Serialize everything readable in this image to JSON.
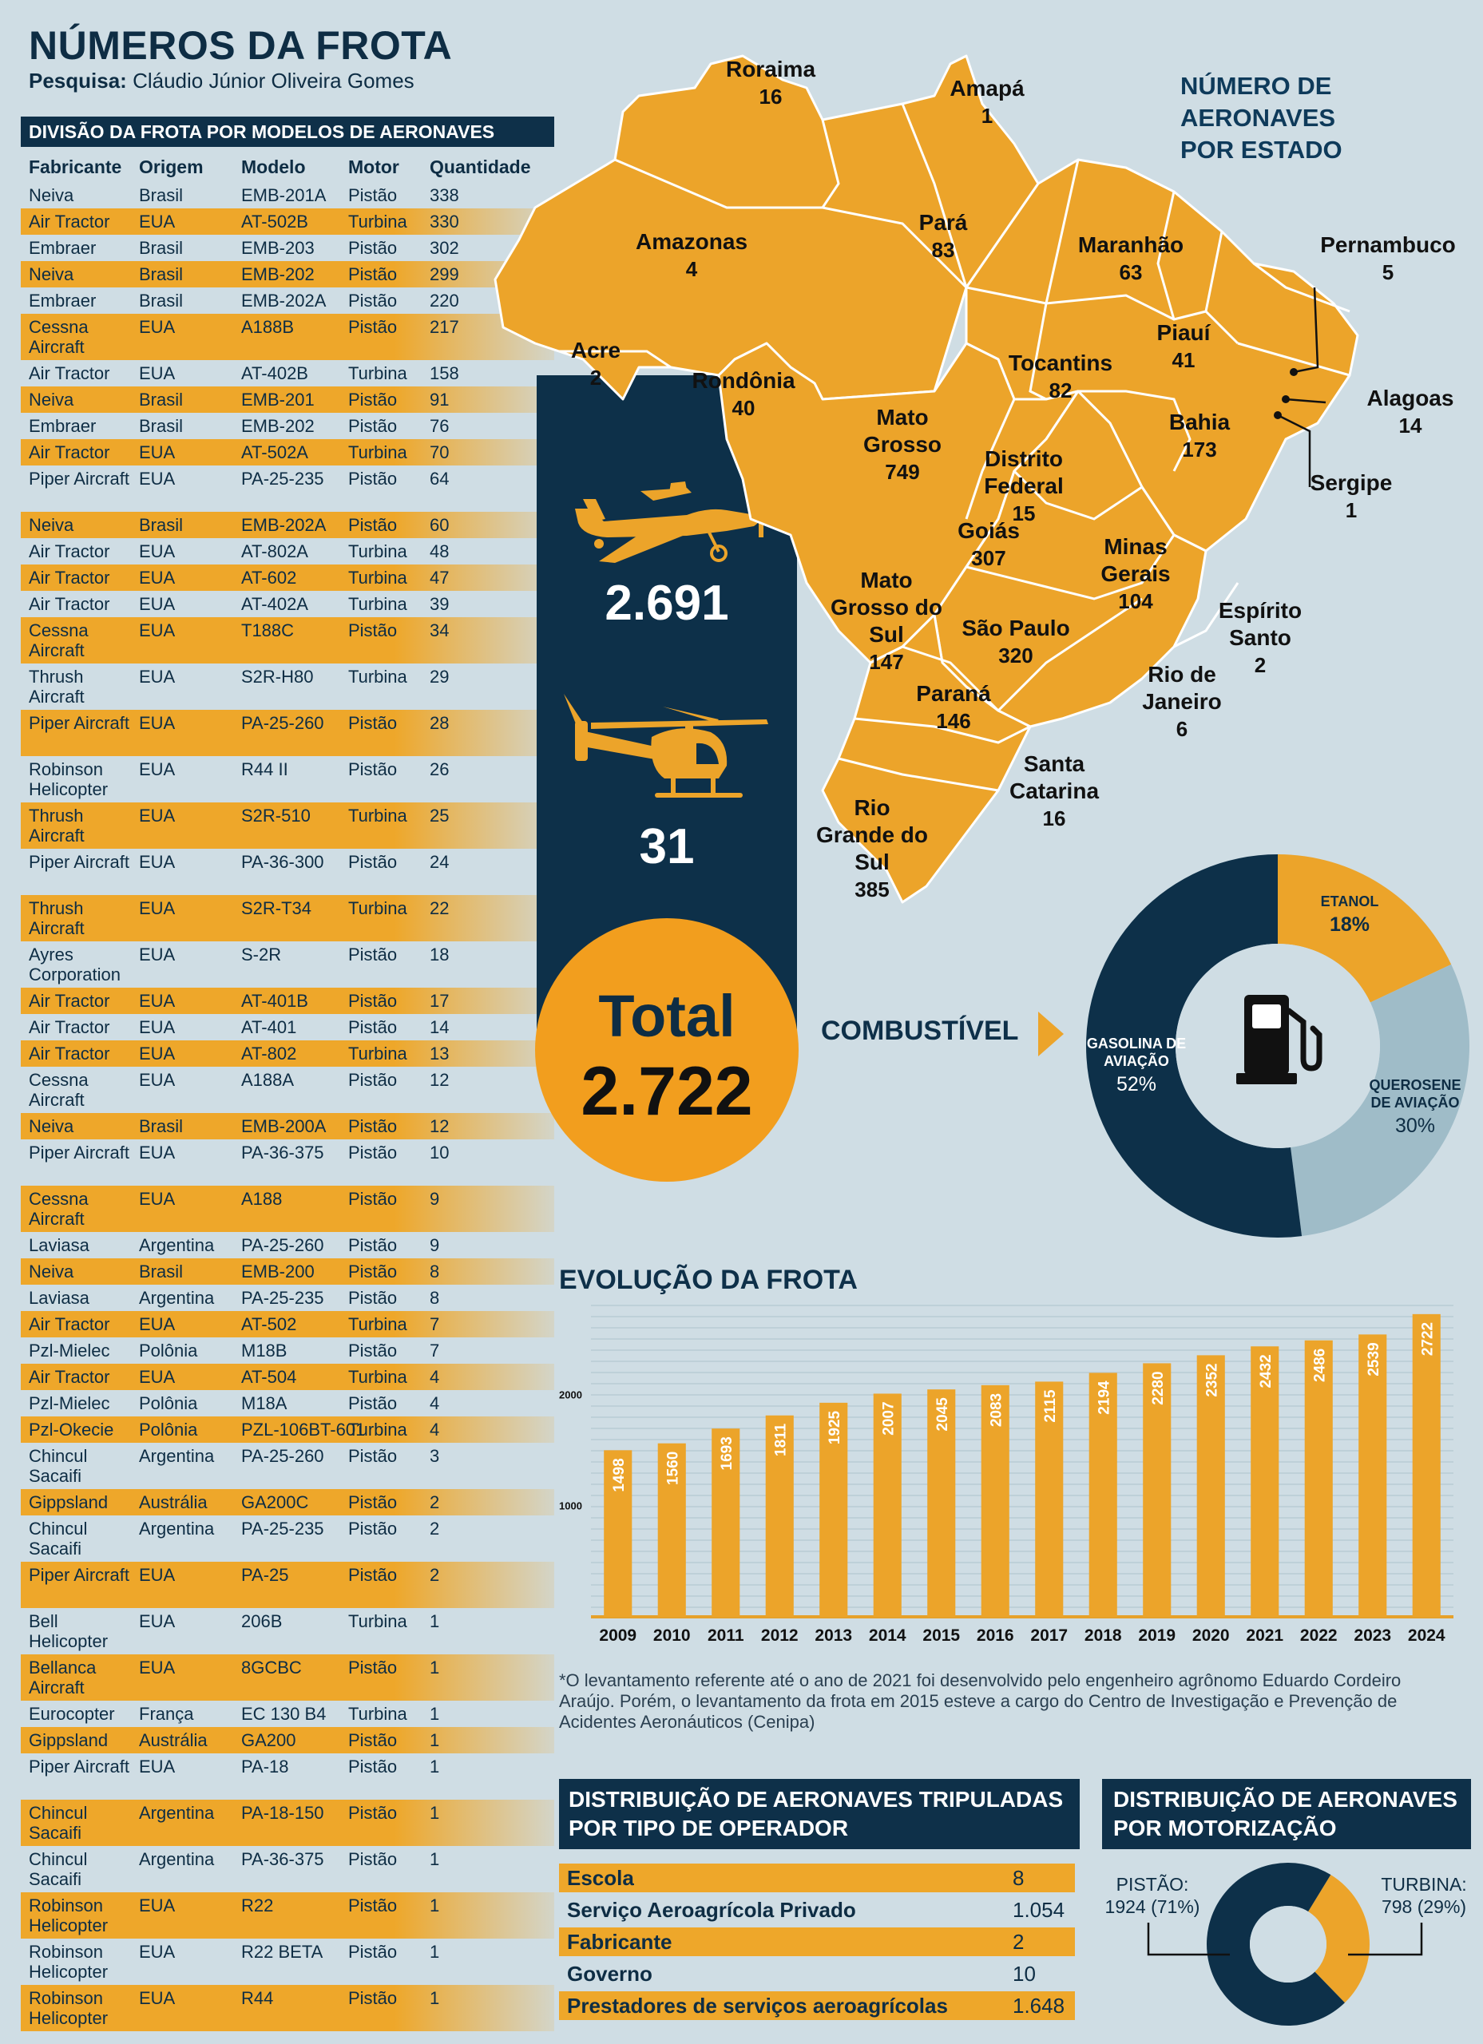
{
  "header": {
    "title": "NÚMEROS DA FROTA",
    "research_label": "Pesquisa:",
    "research_author": "Cláudio Júnior Oliveira Gomes"
  },
  "fleet_table": {
    "title": "DIVISÃO DA FROTA POR MODELOS DE AERONAVES",
    "columns": [
      "Fabricante",
      "Origem",
      "Modelo",
      "Motor",
      "Quantidade"
    ],
    "rows": [
      [
        "Neiva",
        "Brasil",
        "EMB-201A",
        "Pistão",
        "338"
      ],
      [
        "Air Tractor",
        "EUA",
        "AT-502B",
        "Turbina",
        "330"
      ],
      [
        "Embraer",
        "Brasil",
        "EMB-203",
        "Pistão",
        "302"
      ],
      [
        "Neiva",
        "Brasil",
        "EMB-202",
        "Pistão",
        "299"
      ],
      [
        "Embraer",
        "Brasil",
        "EMB-202A",
        "Pistão",
        "220"
      ],
      [
        "Cessna Aircraft",
        "EUA",
        "A188B",
        "Pistão",
        "217"
      ],
      [
        "Air Tractor",
        "EUA",
        "AT-402B",
        "Turbina",
        "158"
      ],
      [
        "Neiva",
        "Brasil",
        "EMB-201",
        "Pistão",
        "91"
      ],
      [
        "Embraer",
        "Brasil",
        "EMB-202",
        "Pistão",
        "76"
      ],
      [
        "Air Tractor",
        "EUA",
        "AT-502A",
        "Turbina",
        "70"
      ],
      [
        "Piper Aircraft",
        "EUA",
        "PA-25-235",
        "Pistão",
        "64"
      ],
      [
        "Neiva",
        "Brasil",
        "EMB-202A",
        "Pistão",
        "60"
      ],
      [
        "Air Tractor",
        "EUA",
        "AT-802A",
        "Turbina",
        "48"
      ],
      [
        "Air Tractor",
        "EUA",
        "AT-602",
        "Turbina",
        "47"
      ],
      [
        "Air Tractor",
        "EUA",
        "AT-402A",
        "Turbina",
        "39"
      ],
      [
        "Cessna Aircraft",
        "EUA",
        "T188C",
        "Pistão",
        "34"
      ],
      [
        "Thrush Aircraft",
        "EUA",
        "S2R-H80",
        "Turbina",
        "29"
      ],
      [
        "Piper Aircraft",
        "EUA",
        "PA-25-260",
        "Pistão",
        "28"
      ],
      [
        "Robinson Helicopter",
        "EUA",
        "R44 II",
        "Pistão",
        "26"
      ],
      [
        "Thrush Aircraft",
        "EUA",
        "S2R-510",
        "Turbina",
        "25"
      ],
      [
        "Piper Aircraft",
        "EUA",
        "PA-36-300",
        "Pistão",
        "24"
      ],
      [
        "Thrush Aircraft",
        "EUA",
        "S2R-T34",
        "Turbina",
        "22"
      ],
      [
        "Ayres Corporation",
        "EUA",
        "S-2R",
        "Pistão",
        "18"
      ],
      [
        "Air Tractor",
        "EUA",
        "AT-401B",
        "Pistão",
        "17"
      ],
      [
        "Air Tractor",
        "EUA",
        "AT-401",
        "Pistão",
        "14"
      ],
      [
        "Air Tractor",
        "EUA",
        "AT-802",
        "Turbina",
        "13"
      ],
      [
        "Cessna Aircraft",
        "EUA",
        "A188A",
        "Pistão",
        "12"
      ],
      [
        "Neiva",
        "Brasil",
        "EMB-200A",
        "Pistão",
        "12"
      ],
      [
        "Piper Aircraft",
        "EUA",
        "PA-36-375",
        "Pistão",
        "10"
      ],
      [
        "Cessna Aircraft",
        "EUA",
        "A188",
        "Pistão",
        "9"
      ],
      [
        "Laviasa",
        "Argentina",
        "PA-25-260",
        "Pistão",
        "9"
      ],
      [
        "Neiva",
        "Brasil",
        "EMB-200",
        "Pistão",
        "8"
      ],
      [
        "Laviasa",
        "Argentina",
        "PA-25-235",
        "Pistão",
        "8"
      ],
      [
        "Air Tractor",
        "EUA",
        "AT-502",
        "Turbina",
        "7"
      ],
      [
        "Pzl-Mielec",
        "Polônia",
        "M18B",
        "Pistão",
        "7"
      ],
      [
        "Air Tractor",
        "EUA",
        "AT-504",
        "Turbina",
        "4"
      ],
      [
        "Pzl-Mielec",
        "Polônia",
        "M18A",
        "Pistão",
        "4"
      ],
      [
        "Pzl-Okecie",
        "Polônia",
        "PZL-106BT-601",
        "Turbina",
        "4"
      ],
      [
        "Chincul Sacaifi",
        "Argentina",
        "PA-25-260",
        "Pistão",
        "3"
      ],
      [
        "Gippsland",
        "Austrália",
        "GA200C",
        "Pistão",
        "2"
      ],
      [
        "Chincul Sacaifi",
        "Argentina",
        "PA-25-235",
        "Pistão",
        "2"
      ],
      [
        "Piper Aircraft",
        "EUA",
        "PA-25",
        "Pistão",
        "2"
      ],
      [
        "Bell Helicopter",
        "EUA",
        "206B",
        "Turbina",
        "1"
      ],
      [
        "Bellanca Aircraft",
        "EUA",
        "8GCBC",
        "Pistão",
        "1"
      ],
      [
        "Eurocopter",
        "França",
        "EC 130 B4",
        "Turbina",
        "1"
      ],
      [
        "Gippsland",
        "Austrália",
        "GA200",
        "Pistão",
        "1"
      ],
      [
        "Piper Aircraft",
        "EUA",
        "PA-18",
        "Pistão",
        "1"
      ],
      [
        "Chincul Sacaifi",
        "Argentina",
        "PA-18-150",
        "Pistão",
        "1"
      ],
      [
        "Chincul Sacaifi",
        "Argentina",
        "PA-36-375",
        "Pistão",
        "1"
      ],
      [
        "Robinson Helicopter",
        "EUA",
        "R22",
        "Pistão",
        "1"
      ],
      [
        "Robinson Helicopter",
        "EUA",
        "R22 BETA",
        "Pistão",
        "1"
      ],
      [
        "Robinson Helicopter",
        "EUA",
        "R44",
        "Pistão",
        "1"
      ]
    ]
  },
  "totals": {
    "airplanes": "2.691",
    "helicopters": "31",
    "total_label": "Total",
    "total_value": "2.722",
    "airplane_icon": "airplane-icon",
    "helicopter_icon": "helicopter-icon"
  },
  "map": {
    "title": "NÚMERO DE AERONAVES POR ESTADO",
    "fill_color": "#eca42a",
    "states": [
      {
        "name": "Roraima",
        "value": "16"
      },
      {
        "name": "Amapá",
        "value": "1"
      },
      {
        "name": "Amazonas",
        "value": "4"
      },
      {
        "name": "Pará",
        "value": "83"
      },
      {
        "name": "Maranhão",
        "value": "63"
      },
      {
        "name": "Pernambuco",
        "value": "5"
      },
      {
        "name": "Acre",
        "value": "2"
      },
      {
        "name": "Rondônia",
        "value": "40"
      },
      {
        "name": "Tocantins",
        "value": "82"
      },
      {
        "name": "Piauí",
        "value": "41"
      },
      {
        "name": "Alagoas",
        "value": "14"
      },
      {
        "name": "Mato Grosso",
        "value": "749"
      },
      {
        "name": "Bahia",
        "value": "173"
      },
      {
        "name": "Distrito Federal",
        "value": "15"
      },
      {
        "name": "Sergipe",
        "value": "1"
      },
      {
        "name": "Goiás",
        "value": "307"
      },
      {
        "name": "Minas Gerais",
        "value": "104"
      },
      {
        "name": "Mato Grosso do Sul",
        "value": "147"
      },
      {
        "name": "São Paulo",
        "value": "320"
      },
      {
        "name": "Espírito Santo",
        "value": "2"
      },
      {
        "name": "Rio de Janeiro",
        "value": "6"
      },
      {
        "name": "Paraná",
        "value": "146"
      },
      {
        "name": "Santa Catarina",
        "value": "16"
      },
      {
        "name": "Rio Grande do Sul",
        "value": "385"
      }
    ]
  },
  "fuel": {
    "label": "COMBUSTÍVEL",
    "icon": "fuel-pump-icon",
    "slices": [
      {
        "name": "ETANOL",
        "percent": 18,
        "display": "18%",
        "color": "#eca42a"
      },
      {
        "name": "QUEROSENE DE AVIAÇÃO",
        "percent": 30,
        "display": "30%",
        "color": "#9fbcc8"
      },
      {
        "name": "GASOLINA DE AVIAÇÃO",
        "percent": 52,
        "display": "52%",
        "color": "#0d3049"
      }
    ]
  },
  "chart_data": [
    {
      "type": "bar",
      "title": "EVOLUÇÃO DA FROTA",
      "categories": [
        "2009",
        "2010",
        "2011",
        "2012",
        "2013",
        "2014",
        "2015",
        "2016",
        "2017",
        "2018",
        "2019",
        "2020",
        "2021",
        "2022",
        "2023",
        "2024"
      ],
      "values": [
        1498,
        1560,
        1693,
        1811,
        1925,
        2007,
        2045,
        2083,
        2115,
        2194,
        2280,
        2352,
        2432,
        2486,
        2539,
        2722
      ],
      "yticks": [
        1000,
        2000
      ],
      "ylim": [
        0,
        2800
      ],
      "bar_color": "#eca42a",
      "grid": true
    },
    {
      "type": "pie",
      "title": "COMBUSTÍVEL",
      "labels": [
        "ETANOL",
        "QUEROSENE DE AVIAÇÃO",
        "GASOLINA DE AVIAÇÃO"
      ],
      "values": [
        18,
        30,
        52
      ]
    },
    {
      "type": "pie",
      "title": "DISTRIBUIÇÃO DE AERONAVES POR MOTORIZAÇÃO",
      "labels": [
        "PISTÃO:",
        "TURBINA:"
      ],
      "values": [
        1924,
        798
      ]
    }
  ],
  "evolution": {
    "title": "EVOLUÇÃO DA FROTA",
    "footnote": "*O levantamento referente até o ano de 2021 foi desenvolvido pelo engenheiro agrônomo Eduardo Cordeiro Araújo. Porém, o levantamento da frota em 2015 esteve a cargo do Centro de Investigação e Prevenção de Acidentes Aeronáuticos  (Cenipa)"
  },
  "operators": {
    "title": "DISTRIBUIÇÃO DE AERONAVES TRIPULADAS POR TIPO DE OPERADOR",
    "rows": [
      {
        "label": "Escola",
        "value": "8"
      },
      {
        "label": "Serviço Aeroagrícola Privado",
        "value": "1.054"
      },
      {
        "label": "Fabricante",
        "value": "2"
      },
      {
        "label": "Governo",
        "value": "10"
      },
      {
        "label": "Prestadores de serviços aeroagrícolas",
        "value": "1.648"
      }
    ]
  },
  "motorization": {
    "title": "DISTRIBUIÇÃO DE AERONAVES POR MOTORIZAÇÃO",
    "piston_label": "PISTÃO:",
    "piston_value": "1924 (71%)",
    "turbine_label": "TURBINA:",
    "turbine_value": "798 (29%)",
    "piston_fraction": 0.71,
    "turbine_fraction": 0.29,
    "piston_color": "#0d3049",
    "turbine_color": "#eca42a"
  }
}
